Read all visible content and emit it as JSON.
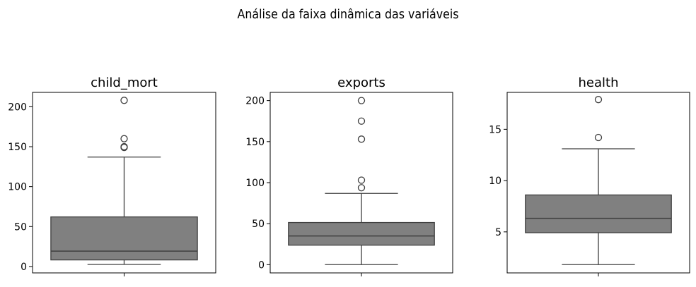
{
  "chart_data": [
    {
      "type": "box",
      "title": "child_mort",
      "yticks": [
        0,
        50,
        100,
        150,
        200
      ],
      "ylim": [
        -8,
        218
      ],
      "box": {
        "whisker_low": 2.6,
        "q1": 8.25,
        "median": 19.3,
        "q3": 62.1,
        "whisker_high": 137
      },
      "outliers": [
        149,
        150,
        160,
        208
      ]
    },
    {
      "type": "box",
      "title": "exports",
      "yticks": [
        0,
        50,
        100,
        150,
        200
      ],
      "ylim": [
        -10,
        210
      ],
      "box": {
        "whisker_low": 0.1,
        "q1": 23.8,
        "median": 35,
        "q3": 51.4,
        "whisker_high": 86.9
      },
      "outliers": [
        93.8,
        103,
        153,
        175,
        200
      ]
    },
    {
      "type": "box",
      "title": "health",
      "yticks": [
        5,
        10,
        15
      ],
      "ylim": [
        1.0,
        18.6
      ],
      "box": {
        "whisker_low": 1.81,
        "q1": 4.92,
        "median": 6.32,
        "q3": 8.6,
        "whisker_high": 13.1
      },
      "outliers": [
        14.2,
        17.9
      ]
    }
  ],
  "suptitle": "Análise da faixa dinâmica das variáveis",
  "colors": {
    "box_fill": "#808080",
    "line": "#3f3f3f",
    "axes": "#000000",
    "background": "#ffffff"
  }
}
